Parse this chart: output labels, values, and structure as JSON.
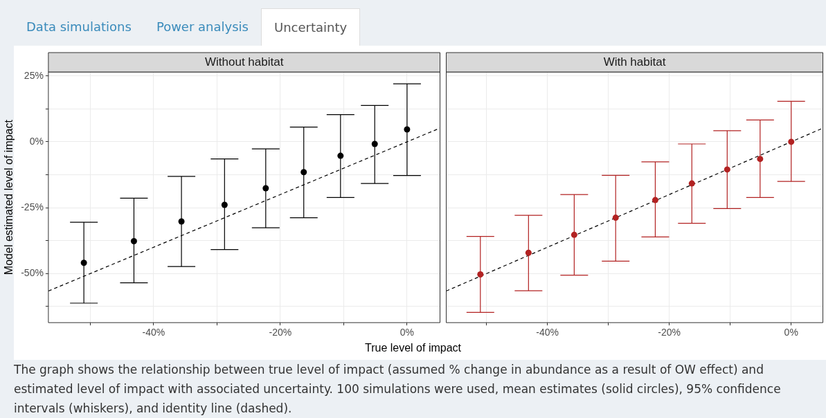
{
  "chart_data": [
    {
      "type": "scatter",
      "title": "Without habitat",
      "ylabel": "Model estimated level of impact",
      "xlabel": "True level of impact",
      "annotations": [
        "Data simulations",
        "Power analysis",
        "Uncertainty"
      ],
      "xlim": [
        -56.6,
        5.2
      ],
      "ylim": [
        -68.6,
        26.5
      ],
      "xticks": [
        {
          "value": -50,
          "label": null
        },
        {
          "value": -40,
          "label": "-40%"
        },
        {
          "value": -30,
          "label": null
        },
        {
          "value": -20,
          "label": "-20%"
        },
        {
          "value": -10,
          "label": null
        },
        {
          "value": 0,
          "label": "0%"
        }
      ],
      "yticks": [
        {
          "value": -62.5,
          "label": null
        },
        {
          "value": -50,
          "label": "-50%"
        },
        {
          "value": -37.5,
          "label": null
        },
        {
          "value": -25,
          "label": "-25%"
        },
        {
          "value": -12.5,
          "label": null
        },
        {
          "value": 0,
          "label": "0%"
        },
        {
          "value": 12.5,
          "label": null
        },
        {
          "value": 25,
          "label": "25%"
        }
      ],
      "grid": true,
      "legend": false,
      "series": [
        {
          "color": "#000000",
          "marker": "circle",
          "x": [
            -51,
            -43.1,
            -35.6,
            -28.8,
            -22.3,
            -16.3,
            -10.5,
            -5.1,
            0
          ],
          "values": [
            -45.9,
            -37.7,
            -30.2,
            -23.9,
            -17.6,
            -11.5,
            -5.3,
            -0.8,
            4.7
          ],
          "errors": [
            [
              -61.2,
              -30.5
            ],
            [
              -53.5,
              -21.4
            ],
            [
              -47.3,
              -13.1
            ],
            [
              -40.9,
              -6.5
            ],
            [
              -32.6,
              -2.7
            ],
            [
              -28.8,
              5.6
            ],
            [
              -21.1,
              10.3
            ],
            [
              -15.8,
              13.8
            ],
            [
              -12.8,
              22.0
            ]
          ]
        },
        {
          "type": "line",
          "color": "#000000",
          "marker": "none",
          "line_style": "dashed",
          "x": [
            -56.6,
            5.2
          ],
          "values": [
            -56.6,
            5.2
          ]
        }
      ]
    },
    {
      "type": "scatter",
      "title": "With habitat",
      "tick_labels": "x",
      "annotations": [
        "The graph shows the relationship between true level of impact (assumed % change in abundance as a result of OW effect) and estimated level of impact with associated uncertainty. 100 simulations were used, mean estimates (solid circles), 95% confidence intervals (whiskers), and identity line (dashed)."
      ],
      "xlim": [
        -56.6,
        5.2
      ],
      "ylim": [
        -68.6,
        26.5
      ],
      "xticks": [
        {
          "value": -50,
          "label": null
        },
        {
          "value": -40,
          "label": "-40%"
        },
        {
          "value": -30,
          "label": null
        },
        {
          "value": -20,
          "label": "-20%"
        },
        {
          "value": -10,
          "label": null
        },
        {
          "value": 0,
          "label": "0%"
        }
      ],
      "yticks": [
        {
          "value": -62.5,
          "label": null
        },
        {
          "value": -50,
          "label": null
        },
        {
          "value": -37.5,
          "label": null
        },
        {
          "value": -25,
          "label": null
        },
        {
          "value": -12.5,
          "label": null
        },
        {
          "value": 0,
          "label": null
        },
        {
          "value": 12.5,
          "label": null
        },
        {
          "value": 25,
          "label": null
        }
      ],
      "grid": true,
      "legend": false,
      "series": [
        {
          "color": "#b22222",
          "marker": "circle",
          "x": [
            -51,
            -43.1,
            -35.6,
            -28.8,
            -22.3,
            -16.3,
            -10.5,
            -5.1,
            0
          ],
          "values": [
            -50.3,
            -42.1,
            -35.3,
            -28.8,
            -22.1,
            -15.8,
            -10.5,
            -6.5,
            0
          ],
          "errors": [
            [
              -64.7,
              -35.9
            ],
            [
              -56.5,
              -27.9
            ],
            [
              -50.6,
              -20.0
            ],
            [
              -45.3,
              -12.7
            ],
            [
              -36.1,
              -7.6
            ],
            [
              -30.9,
              -0.8
            ],
            [
              -25.3,
              4.2
            ],
            [
              -21.1,
              8.3
            ],
            [
              -15.0,
              15.4
            ]
          ]
        },
        {
          "type": "line",
          "color": "#000000",
          "marker": "none",
          "line_style": "dashed",
          "x": [
            -56.6,
            5.2
          ],
          "values": [
            -56.6,
            5.2
          ]
        }
      ]
    }
  ]
}
